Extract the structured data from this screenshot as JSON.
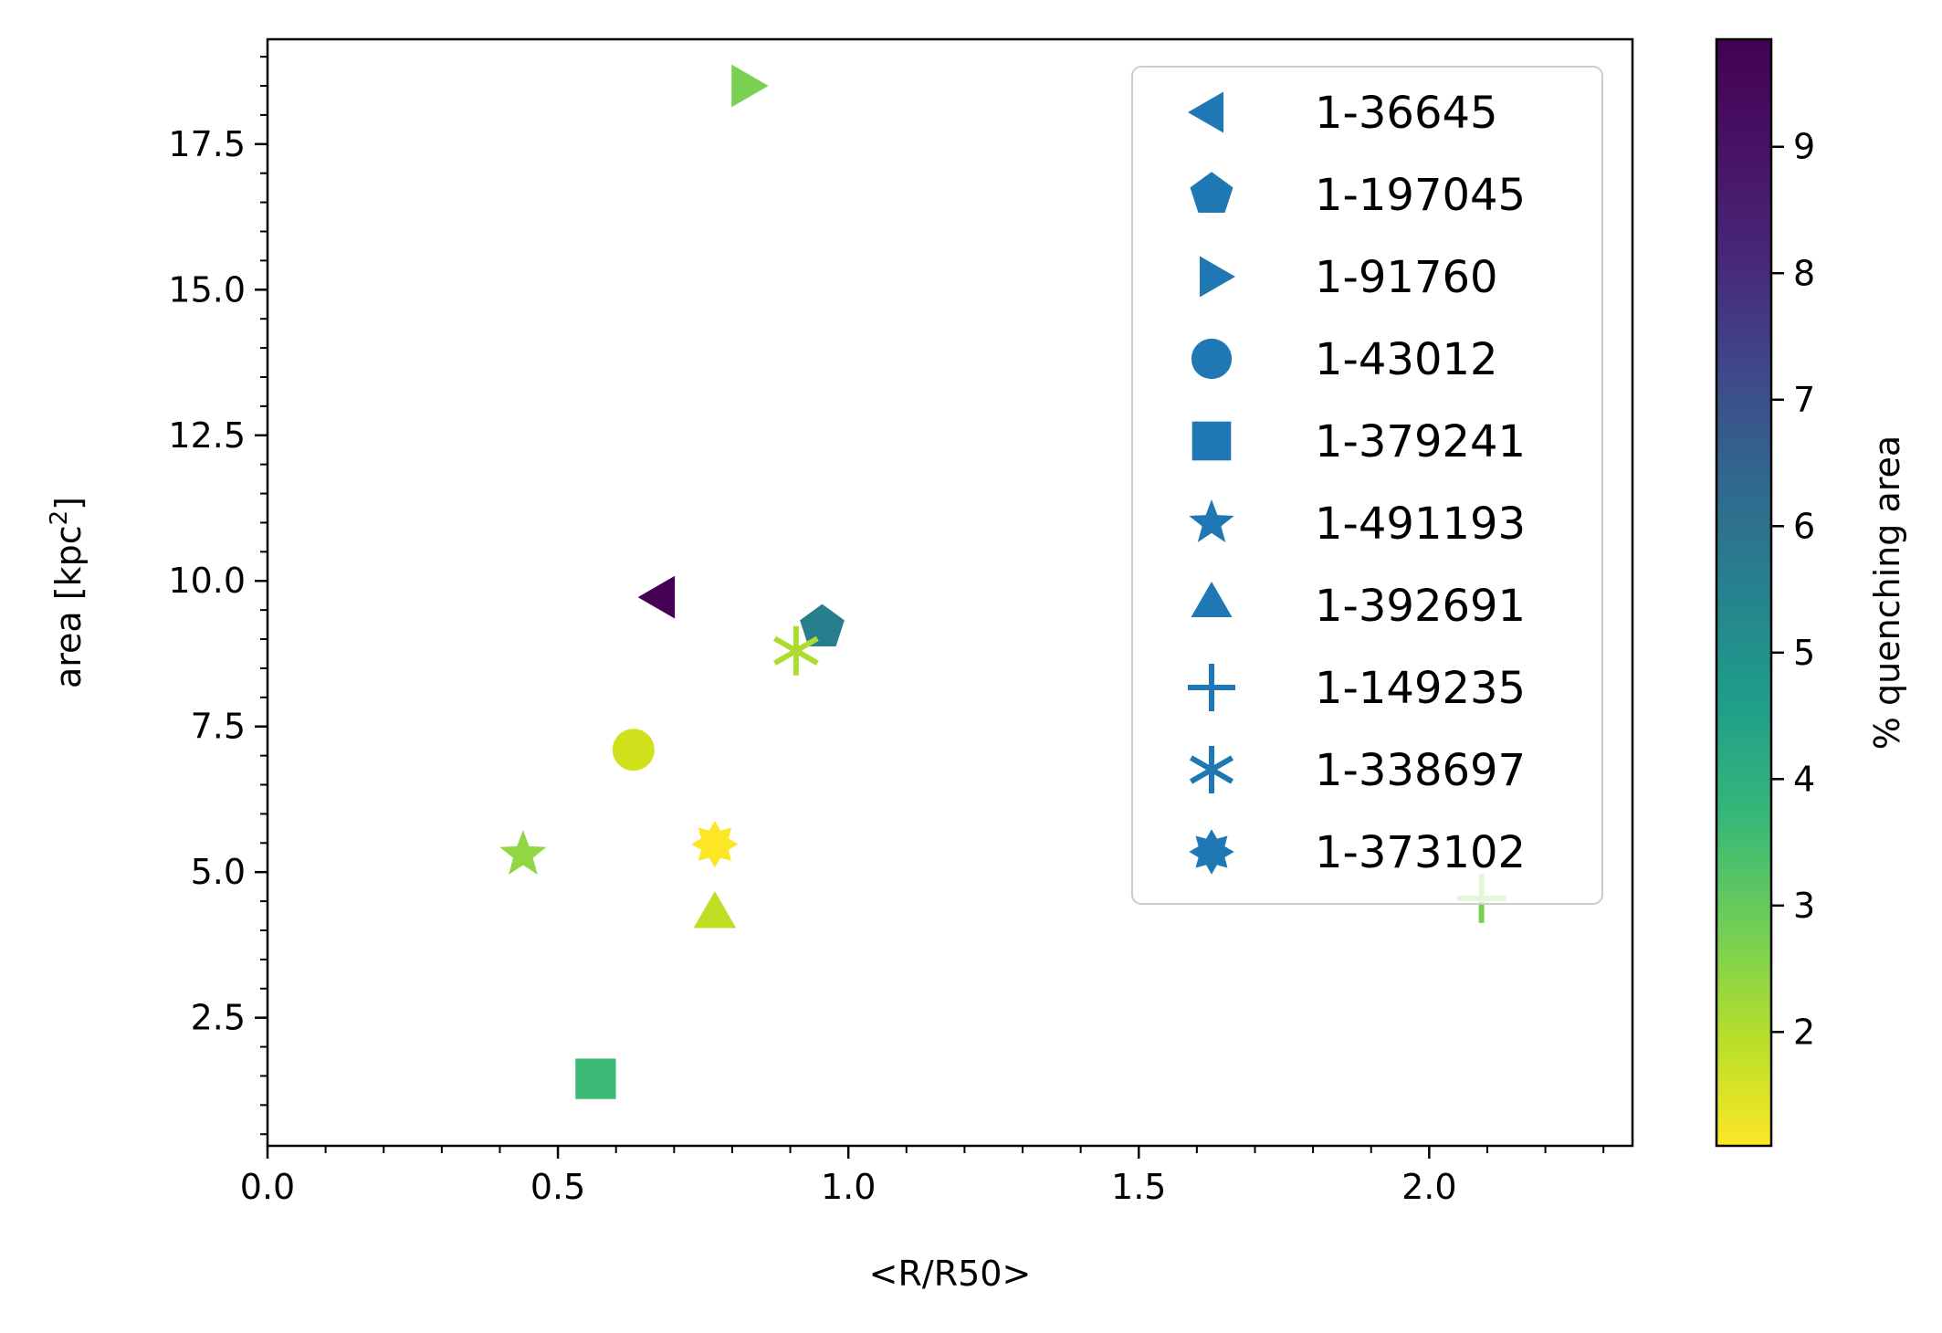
{
  "chart_data": {
    "type": "scatter",
    "title": "",
    "xlabel": "<R/R50>",
    "ylabel_prefix": "area [kpc",
    "ylabel_sup": "2",
    "ylabel_suffix": "]",
    "xlim": [
      0.0,
      2.35
    ],
    "ylim": [
      0.3,
      19.3
    ],
    "x_ticks": [
      "0.0",
      "0.5",
      "1.0",
      "1.5",
      "2.0"
    ],
    "y_ticks": [
      "2.5",
      "5.0",
      "7.5",
      "10.0",
      "12.5",
      "15.0",
      "17.5"
    ],
    "grid": false,
    "legend_position": "upper right",
    "legend_marker_color": "#1f77b4",
    "colorbar": {
      "label": "% quenching area",
      "range": [
        1.1,
        9.85
      ],
      "ticks": [
        "2",
        "3",
        "4",
        "5",
        "6",
        "7",
        "8",
        "9"
      ],
      "colormap": "viridis (reversed)"
    },
    "points": [
      {
        "label": "1-36645",
        "marker": "triangle-left",
        "x": 0.68,
        "y": 9.72,
        "value": 9.85,
        "color": "#440154"
      },
      {
        "label": "1-197045",
        "marker": "pentagon",
        "x": 0.955,
        "y": 9.2,
        "value": 6.0,
        "color": "#277f8e"
      },
      {
        "label": "1-91760",
        "marker": "triangle-right",
        "x": 0.82,
        "y": 18.5,
        "value": 2.9,
        "color": "#7ad151"
      },
      {
        "label": "1-43012",
        "marker": "circle",
        "x": 0.63,
        "y": 7.1,
        "value": 1.7,
        "color": "#d0e11c"
      },
      {
        "label": "1-379241",
        "marker": "square",
        "x": 0.565,
        "y": 1.45,
        "value": 3.85,
        "color": "#3bbb75"
      },
      {
        "label": "1-491193",
        "marker": "star",
        "x": 0.44,
        "y": 5.3,
        "value": 2.75,
        "color": "#8fd744"
      },
      {
        "label": "1-392691",
        "marker": "triangle-up",
        "x": 0.77,
        "y": 4.25,
        "value": 2.05,
        "color": "#bfdf25"
      },
      {
        "label": "1-149235",
        "marker": "plus",
        "x": 2.09,
        "y": 4.55,
        "value": 3.0,
        "color": "#7ad151"
      },
      {
        "label": "1-338697",
        "marker": "asterisk",
        "x": 0.91,
        "y": 8.8,
        "value": 2.3,
        "color": "#addc30"
      },
      {
        "label": "1-373102",
        "marker": "burst",
        "x": 0.77,
        "y": 5.48,
        "value": 1.1,
        "color": "#fde725"
      }
    ]
  }
}
